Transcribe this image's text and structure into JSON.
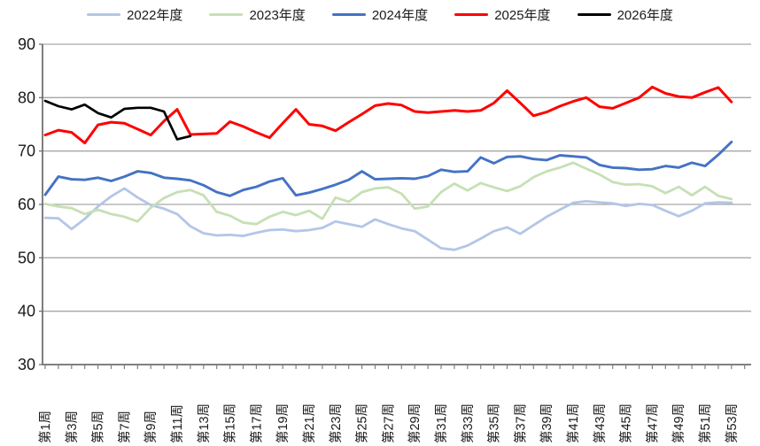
{
  "legend": {
    "items": [
      {
        "label": "2022年度",
        "color": "#b3c6e7"
      },
      {
        "label": "2023年度",
        "color": "#c6e0b4"
      },
      {
        "label": "2024年度",
        "color": "#4472c4"
      },
      {
        "label": "2025年度",
        "color": "#ff0000"
      },
      {
        "label": "2026年度",
        "color": "#000000"
      }
    ]
  },
  "chart_data": {
    "type": "line",
    "title": "",
    "xlabel": "",
    "ylabel": "",
    "ylim": [
      30,
      90
    ],
    "y_ticks": [
      90,
      80,
      70,
      60,
      50,
      40,
      30
    ],
    "x_label_every": 2,
    "grid": true,
    "legend_position": "top",
    "categories": [
      "第1周",
      "第2周",
      "第3周",
      "第4周",
      "第5周",
      "第6周",
      "第7周",
      "第8周",
      "第9周",
      "第10周",
      "第11周",
      "第12周",
      "第13周",
      "第14周",
      "第15周",
      "第16周",
      "第17周",
      "第18周",
      "第19周",
      "第20周",
      "第21周",
      "第22周",
      "第23周",
      "第24周",
      "第25周",
      "第26周",
      "第27周",
      "第28周",
      "第29周",
      "第30周",
      "第31周",
      "第32周",
      "第33周",
      "第34周",
      "第35周",
      "第36周",
      "第37周",
      "第38周",
      "第39周",
      "第40周",
      "第41周",
      "第42周",
      "第43周",
      "第44周",
      "第45周",
      "第46周",
      "第47周",
      "第48周",
      "第49周",
      "第50周",
      "第51周",
      "第52周",
      "第53周"
    ],
    "series": [
      {
        "name": "2022年度",
        "color": "#b3c6e7",
        "width": 2.8,
        "values": [
          57.5,
          57.4,
          55.4,
          57.3,
          59.6,
          61.5,
          63.0,
          61.3,
          59.9,
          59.2,
          58.2,
          55.9,
          54.6,
          54.2,
          54.3,
          54.1,
          54.7,
          55.2,
          55.3,
          55.0,
          55.2,
          55.6,
          56.8,
          56.3,
          55.8,
          57.2,
          56.3,
          55.5,
          55.0,
          53.4,
          51.8,
          51.5,
          52.3,
          53.6,
          55.0,
          55.7,
          54.5,
          56.1,
          57.7,
          59.0,
          60.3,
          60.6,
          60.4,
          60.2,
          59.7,
          60.1,
          59.9,
          58.8,
          57.8,
          58.8,
          60.2,
          60.4,
          60.3
        ]
      },
      {
        "name": "2023年度",
        "color": "#c6e0b4",
        "width": 2.8,
        "values": [
          60.1,
          59.6,
          59.3,
          58.2,
          59.0,
          58.2,
          57.7,
          56.8,
          59.4,
          61.2,
          62.3,
          62.7,
          61.7,
          58.6,
          57.9,
          56.6,
          56.3,
          57.7,
          58.6,
          58.0,
          58.8,
          57.3,
          61.3,
          60.5,
          62.3,
          63.0,
          63.2,
          62.0,
          59.2,
          59.6,
          62.3,
          63.9,
          62.6,
          64.0,
          63.2,
          62.5,
          63.4,
          65.1,
          66.2,
          66.9,
          67.8,
          66.7,
          65.6,
          64.2,
          63.7,
          63.8,
          63.4,
          62.1,
          63.3,
          61.7,
          63.3,
          61.6,
          61.0
        ]
      },
      {
        "name": "2024年度",
        "color": "#4472c4",
        "width": 2.9,
        "values": [
          61.8,
          65.2,
          64.7,
          64.6,
          65.0,
          64.4,
          65.2,
          66.2,
          65.9,
          65.0,
          64.8,
          64.5,
          63.6,
          62.3,
          61.6,
          62.7,
          63.3,
          64.3,
          64.9,
          61.7,
          62.2,
          62.9,
          63.7,
          64.6,
          66.2,
          64.7,
          64.8,
          64.9,
          64.8,
          65.3,
          66.5,
          66.1,
          66.2,
          68.8,
          67.7,
          68.9,
          69.0,
          68.5,
          68.3,
          69.2,
          69.0,
          68.8,
          67.4,
          66.9,
          66.8,
          66.5,
          66.6,
          67.2,
          66.9,
          67.8,
          67.2,
          69.3,
          71.7
        ]
      },
      {
        "name": "2025年度",
        "color": "#ff0000",
        "width": 3.0,
        "values": [
          73.0,
          73.9,
          73.5,
          71.5,
          74.9,
          75.4,
          75.2,
          74.1,
          73.0,
          75.6,
          77.8,
          73.1,
          73.2,
          73.3,
          75.5,
          74.6,
          73.5,
          72.5,
          75.2,
          77.8,
          75.0,
          74.7,
          73.8,
          75.4,
          76.9,
          78.5,
          78.9,
          78.6,
          77.4,
          77.2,
          77.4,
          77.6,
          77.4,
          77.6,
          79.0,
          81.3,
          79.0,
          76.6,
          77.3,
          78.4,
          79.3,
          80.0,
          78.3,
          78.0,
          79.0,
          80.0,
          82.0,
          80.8,
          80.2,
          80.0,
          81.0,
          81.9,
          79.2
        ]
      },
      {
        "name": "2026年度",
        "color": "#000000",
        "width": 2.7,
        "values": [
          79.4,
          78.4,
          77.8,
          78.7,
          77.1,
          76.3,
          77.9,
          78.1,
          78.1,
          77.4,
          72.2,
          72.8
        ]
      }
    ]
  },
  "style": {
    "gridline_color": "#a6a6a6",
    "axis_color": "#808080",
    "yaxis_color": "#6f6f6f",
    "label_color": "#1a1a1a"
  }
}
